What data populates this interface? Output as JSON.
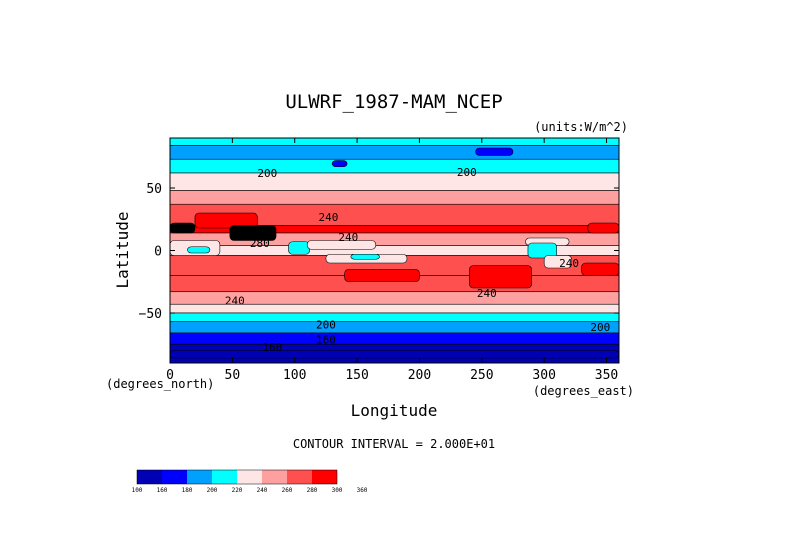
{
  "chart_data": {
    "type": "heatmap",
    "title": "ULWRF_1987-MAM_NCEP",
    "units_label": "(units:W/m^2)",
    "xlabel": "Longitude",
    "ylabel": "Latitude",
    "x_units_label": "(degrees_east)",
    "y_units_label": "(degrees_north)",
    "xlim": [
      0,
      360
    ],
    "ylim": [
      -90,
      90
    ],
    "x_ticks": [
      0,
      50,
      100,
      150,
      200,
      250,
      300,
      350
    ],
    "y_ticks": [
      -50,
      0,
      50
    ],
    "x_tick_labels": [
      "0",
      "50",
      "100",
      "150",
      "200",
      "250",
      "300",
      "350"
    ],
    "y_tick_labels": [
      "−50",
      "0",
      "50"
    ],
    "contour_interval_text": "CONTOUR INTERVAL = 2.000E+01",
    "contour_levels": [
      100,
      160,
      180,
      200,
      220,
      240,
      260,
      280,
      300,
      360
    ],
    "colorbar_labels": [
      "100",
      "160",
      "180",
      "200",
      "220",
      "240",
      "260",
      "280",
      "300",
      "360"
    ],
    "colors": [
      "#0000b4",
      "#0000ff",
      "#00a0ff",
      "#00ffff",
      "#ffe6e6",
      "#ffa0a0",
      "#ff5050",
      "#ff0000"
    ],
    "contour_labels": [
      {
        "text": "200",
        "lon": 78,
        "lat": 62
      },
      {
        "text": "200",
        "lon": 238,
        "lat": 63
      },
      {
        "text": "240",
        "lon": 127,
        "lat": 27
      },
      {
        "text": "280",
        "lon": 72,
        "lat": 6
      },
      {
        "text": "240",
        "lon": 143,
        "lat": 11
      },
      {
        "text": "240",
        "lon": 320,
        "lat": -10
      },
      {
        "text": "240",
        "lon": 52,
        "lat": -40
      },
      {
        "text": "240",
        "lon": 254,
        "lat": -34
      },
      {
        "text": "200",
        "lon": 125,
        "lat": -59
      },
      {
        "text": "200",
        "lon": 345,
        "lat": -61
      },
      {
        "text": "160",
        "lon": 125,
        "lat": -71
      },
      {
        "text": "160",
        "lon": 82,
        "lat": -77
      }
    ],
    "bands": [
      {
        "lat_min": 84,
        "lat_max": 90,
        "value": 210
      },
      {
        "lat_min": 73,
        "lat_max": 84,
        "value": 190
      },
      {
        "lat_min": 62,
        "lat_max": 73,
        "value": 210
      },
      {
        "lat_min": 48,
        "lat_max": 62,
        "value": 230
      },
      {
        "lat_min": 37,
        "lat_max": 48,
        "value": 250
      },
      {
        "lat_min": 20,
        "lat_max": 37,
        "value": 270
      },
      {
        "lat_min": 14,
        "lat_max": 20,
        "value": 290
      },
      {
        "lat_min": 4,
        "lat_max": 14,
        "value": 250
      },
      {
        "lat_min": -4,
        "lat_max": 4,
        "value": 230
      },
      {
        "lat_min": -20,
        "lat_max": -4,
        "value": 270
      },
      {
        "lat_min": -33,
        "lat_max": -20,
        "value": 270
      },
      {
        "lat_min": -43,
        "lat_max": -33,
        "value": 250
      },
      {
        "lat_min": -50,
        "lat_max": -43,
        "value": 230
      },
      {
        "lat_min": -57,
        "lat_max": -50,
        "value": 210
      },
      {
        "lat_min": -66,
        "lat_max": -57,
        "value": 190
      },
      {
        "lat_min": -75,
        "lat_max": -66,
        "value": 170
      },
      {
        "lat_min": -90,
        "lat_max": -75,
        "value": 140
      }
    ],
    "patches": [
      {
        "lon_min": 130,
        "lon_max": 142,
        "lat_min": 67,
        "lat_max": 72,
        "value": 170
      },
      {
        "lon_min": 245,
        "lon_max": 275,
        "lat_min": 76,
        "lat_max": 82,
        "value": 170
      },
      {
        "lon_min": 20,
        "lon_max": 70,
        "lat_min": 18,
        "lat_max": 30,
        "value": 290
      },
      {
        "lon_min": 48,
        "lon_max": 85,
        "lat_min": 8,
        "lat_max": 20,
        "value": 310
      },
      {
        "lon_min": 0,
        "lon_max": 20,
        "lat_min": 14,
        "lat_max": 22,
        "value": 310
      },
      {
        "lon_min": 0,
        "lon_max": 40,
        "lat_min": -4,
        "lat_max": 8,
        "value": 230
      },
      {
        "lon_min": 14,
        "lon_max": 32,
        "lat_min": -2,
        "lat_max": 3,
        "value": 210
      },
      {
        "lon_min": 95,
        "lon_max": 112,
        "lat_min": -3,
        "lat_max": 7,
        "value": 210
      },
      {
        "lon_min": 110,
        "lon_max": 165,
        "lat_min": 1,
        "lat_max": 8,
        "value": 230
      },
      {
        "lon_min": 125,
        "lon_max": 190,
        "lat_min": -10,
        "lat_max": -3,
        "value": 230
      },
      {
        "lon_min": 145,
        "lon_max": 168,
        "lat_min": -7,
        "lat_max": -3,
        "value": 210
      },
      {
        "lon_min": 285,
        "lon_max": 320,
        "lat_min": 4,
        "lat_max": 10,
        "value": 230
      },
      {
        "lon_min": 287,
        "lon_max": 310,
        "lat_min": -6,
        "lat_max": 6,
        "value": 210
      },
      {
        "lon_min": 300,
        "lon_max": 322,
        "lat_min": -14,
        "lat_max": -4,
        "value": 230
      },
      {
        "lon_min": 240,
        "lon_max": 290,
        "lat_min": -30,
        "lat_max": -12,
        "value": 290
      },
      {
        "lon_min": 140,
        "lon_max": 200,
        "lat_min": -25,
        "lat_max": -15,
        "value": 290
      },
      {
        "lon_min": 330,
        "lon_max": 360,
        "lat_min": -20,
        "lat_max": -10,
        "value": 290
      },
      {
        "lon_min": 335,
        "lon_max": 360,
        "lat_min": 14,
        "lat_max": 22,
        "value": 290
      },
      {
        "lon_min": 0,
        "lon_max": 360,
        "lat_min": -86,
        "lat_max": -80,
        "value": 120
      }
    ]
  }
}
